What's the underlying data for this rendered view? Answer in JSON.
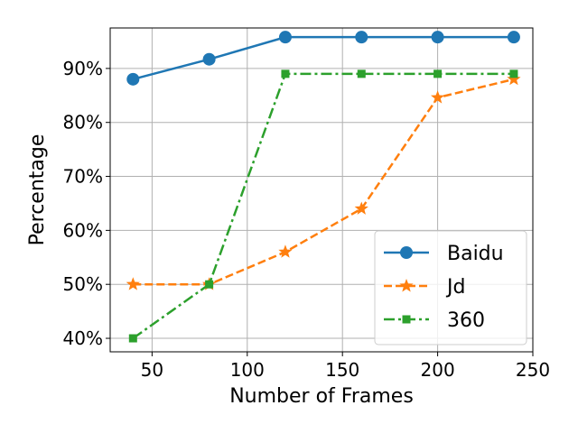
{
  "chart_data": {
    "type": "line",
    "title": "",
    "xlabel": "Number of Frames",
    "ylabel": "Percentage",
    "xlim": [
      28,
      250
    ],
    "ylim": [
      37.5,
      97.5
    ],
    "x_ticks": [
      50,
      100,
      150,
      200,
      250
    ],
    "y_ticks": [
      40,
      50,
      60,
      70,
      80,
      90
    ],
    "y_tick_suffix": "%",
    "grid": true,
    "legend_position": "lower-right",
    "x": [
      40,
      80,
      120,
      160,
      200,
      240
    ],
    "series": [
      {
        "name": "Baidu",
        "color": "#1f77b4",
        "marker": "circle",
        "line_style": "solid",
        "values": [
          88,
          91.7,
          95.8,
          95.8,
          95.8,
          95.8
        ]
      },
      {
        "name": "Jd",
        "color": "#ff7f0e",
        "marker": "star",
        "line_style": "dashed",
        "values": [
          50,
          50,
          56,
          64,
          84.6,
          88
        ]
      },
      {
        "name": "360",
        "color": "#2ca02c",
        "marker": "square",
        "line_style": "dashdot",
        "values": [
          40,
          50,
          89,
          89,
          89,
          89
        ]
      }
    ]
  }
}
